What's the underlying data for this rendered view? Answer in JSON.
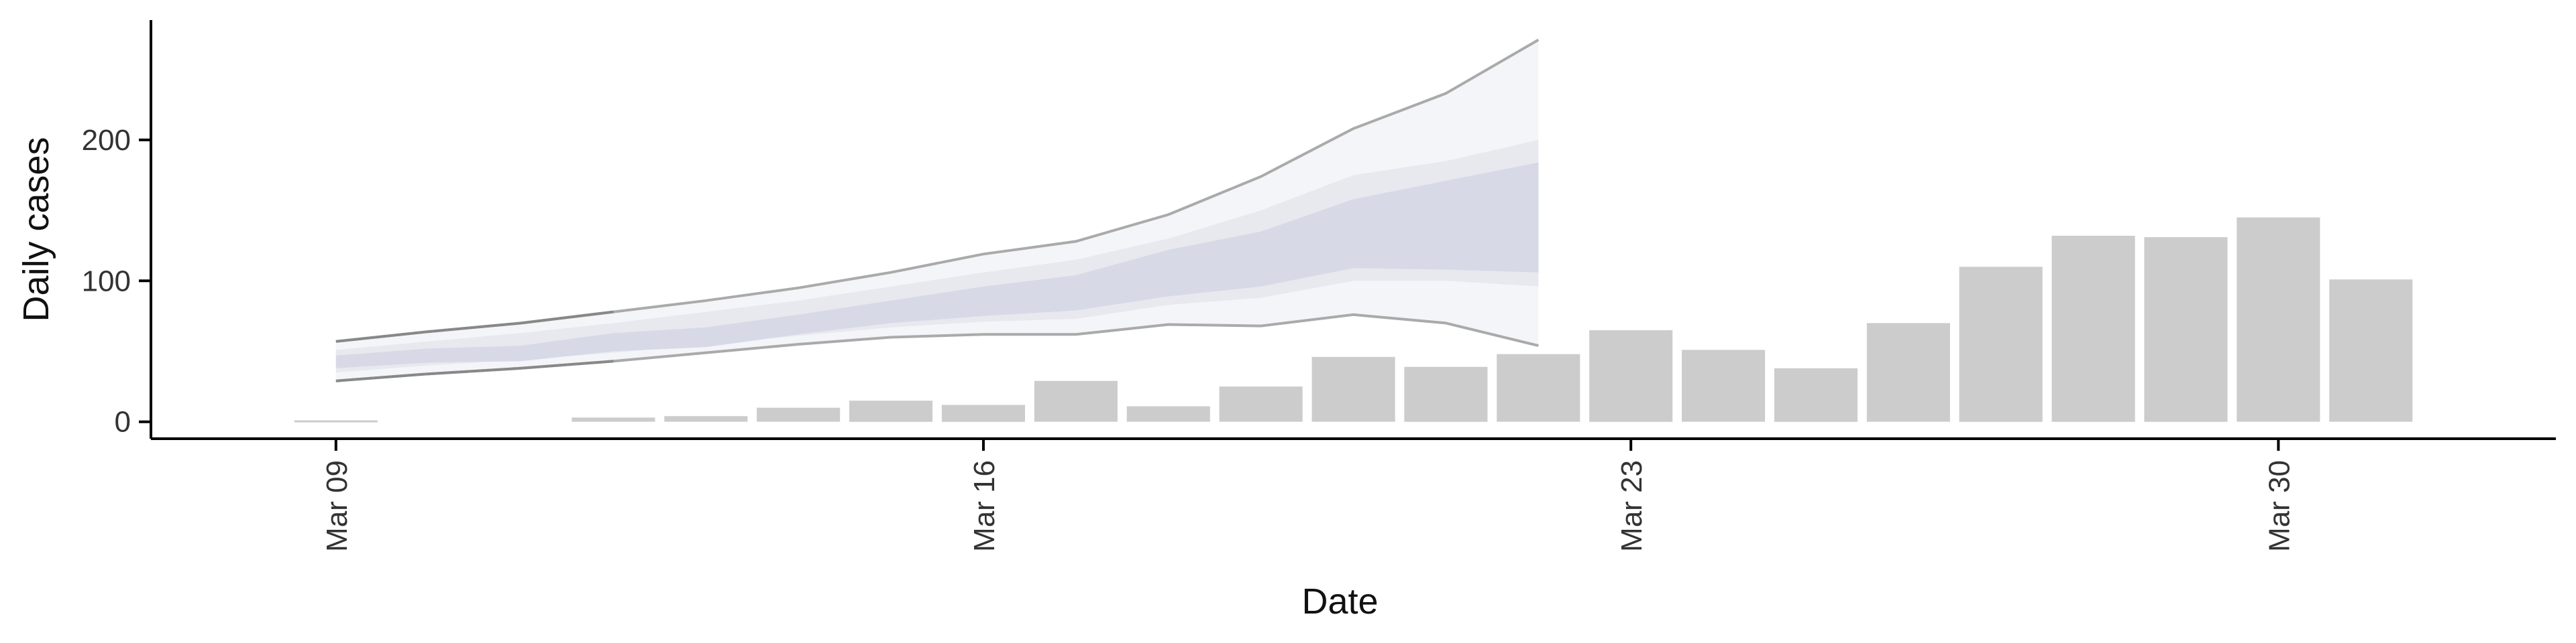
{
  "chart_data": {
    "type": "bar",
    "title": "",
    "xlabel": "Date",
    "ylabel": "Daily cases",
    "x_ticks": [
      {
        "date": "2020-03-09",
        "label": "Mar 09"
      },
      {
        "date": "2020-03-16",
        "label": "Mar 16"
      },
      {
        "date": "2020-03-23",
        "label": "Mar 23"
      },
      {
        "date": "2020-03-30",
        "label": "Mar 30"
      }
    ],
    "y_ticks": [
      0,
      100,
      200
    ],
    "xlim": [
      "2020-03-07",
      "2020-04-02"
    ],
    "ylim": [
      -12,
      285
    ],
    "grid": false,
    "legend": "none",
    "colors": {
      "bars": "#cccccc",
      "outer_band": "#f4f5f8",
      "mid_band": "#e8e9ef",
      "inner_band": "#d7d9e6",
      "outer_band_line": "#aaaaaa",
      "inner_band_line": "#888888",
      "axis": "#000000"
    },
    "bars": [
      {
        "date": "2020-03-09",
        "value": 1
      },
      {
        "date": "2020-03-12",
        "value": 3
      },
      {
        "date": "2020-03-13",
        "value": 4
      },
      {
        "date": "2020-03-14",
        "value": 10
      },
      {
        "date": "2020-03-15",
        "value": 15
      },
      {
        "date": "2020-03-16",
        "value": 12
      },
      {
        "date": "2020-03-17",
        "value": 29
      },
      {
        "date": "2020-03-18",
        "value": 11
      },
      {
        "date": "2020-03-19",
        "value": 25
      },
      {
        "date": "2020-03-20",
        "value": 46
      },
      {
        "date": "2020-03-21",
        "value": 39
      },
      {
        "date": "2020-03-22",
        "value": 48
      },
      {
        "date": "2020-03-23",
        "value": 65
      },
      {
        "date": "2020-03-24",
        "value": 51
      },
      {
        "date": "2020-03-25",
        "value": 38
      },
      {
        "date": "2020-03-26",
        "value": 70
      },
      {
        "date": "2020-03-27",
        "value": 110
      },
      {
        "date": "2020-03-28",
        "value": 132
      },
      {
        "date": "2020-03-29",
        "value": 131
      },
      {
        "date": "2020-03-30",
        "value": 145
      },
      {
        "date": "2020-03-31",
        "value": 101
      }
    ],
    "estimate_bands": {
      "dates": [
        "2020-03-09",
        "2020-03-10",
        "2020-03-11",
        "2020-03-12",
        "2020-03-13",
        "2020-03-14",
        "2020-03-15",
        "2020-03-16",
        "2020-03-17",
        "2020-03-18",
        "2020-03-19",
        "2020-03-20",
        "2020-03-21",
        "2020-03-22"
      ],
      "outer_lower": [
        29,
        34,
        38,
        43,
        49,
        55,
        60,
        62,
        62,
        69,
        68,
        76,
        70,
        54
      ],
      "outer_upper": [
        57,
        64,
        70,
        78,
        86,
        95,
        106,
        119,
        128,
        147,
        174,
        208,
        233,
        271
      ],
      "mid_lower": [
        35,
        40,
        44,
        49,
        55,
        61,
        67,
        71,
        73,
        83,
        88,
        100,
        100,
        96
      ],
      "mid_upper": [
        51,
        57,
        63,
        70,
        78,
        86,
        96,
        106,
        115,
        130,
        150,
        175,
        185,
        200
      ],
      "inner_lower": [
        38,
        42,
        43,
        50,
        53,
        62,
        70,
        75,
        79,
        89,
        96,
        109,
        108,
        106
      ],
      "inner_upper": [
        47,
        52,
        54,
        63,
        67,
        76,
        86,
        96,
        104,
        122,
        135,
        158,
        171,
        184
      ]
    }
  }
}
